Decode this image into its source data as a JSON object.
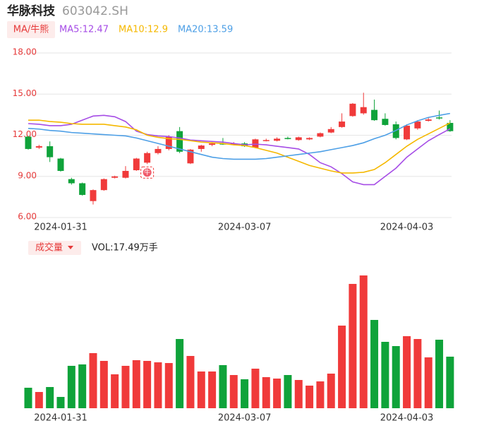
{
  "chart_data": {
    "type": "candlestick",
    "title": "华脉科技",
    "subtitle": "603042.SH",
    "indicator_label": "MA/牛熊",
    "volume_label": "成交量",
    "volume_value_label": "VOL:17.49万手",
    "annotation": "牛",
    "annotation_index": 11,
    "categories": [
      null,
      null,
      null,
      "2024-01-31",
      null,
      null,
      null,
      null,
      null,
      null,
      null,
      null,
      null,
      null,
      null,
      null,
      null,
      null,
      null,
      null,
      "2024-03-07",
      null,
      null,
      null,
      null,
      null,
      null,
      null,
      null,
      null,
      null,
      null,
      null,
      null,
      null,
      "2024-04-03",
      null,
      null,
      null,
      null
    ],
    "open": [
      11.9,
      11.1,
      11.2,
      10.3,
      8.8,
      8.5,
      7.2,
      8.0,
      8.9,
      8.9,
      9.45,
      10.0,
      10.7,
      11.0,
      12.3,
      9.95,
      11.0,
      11.3,
      11.4,
      11.35,
      11.4,
      11.1,
      11.6,
      11.6,
      11.8,
      11.65,
      11.7,
      11.9,
      12.2,
      12.6,
      13.4,
      13.6,
      13.85,
      13.2,
      12.8,
      11.7,
      12.5,
      13.05,
      13.3,
      12.9
    ],
    "high": [
      11.95,
      11.3,
      11.55,
      10.35,
      8.9,
      8.55,
      8.05,
      8.85,
      9.05,
      9.75,
      10.35,
      10.8,
      11.2,
      12.0,
      12.6,
      11.0,
      11.3,
      11.5,
      11.8,
      11.5,
      11.5,
      11.75,
      11.75,
      11.85,
      11.9,
      11.9,
      11.85,
      12.2,
      12.6,
      13.6,
      14.35,
      15.1,
      14.6,
      13.6,
      13.0,
      12.8,
      13.1,
      13.3,
      13.8,
      13.1
    ],
    "low": [
      10.95,
      11.0,
      10.05,
      9.35,
      8.4,
      7.6,
      6.95,
      7.95,
      8.85,
      8.85,
      9.4,
      9.9,
      10.6,
      10.9,
      10.7,
      9.9,
      10.8,
      11.2,
      11.3,
      11.3,
      11.15,
      11.05,
      11.55,
      11.55,
      11.7,
      11.6,
      11.65,
      11.85,
      12.15,
      12.55,
      13.35,
      13.5,
      13.05,
      12.7,
      11.7,
      11.65,
      12.4,
      13.0,
      13.15,
      12.25
    ],
    "close": [
      11.0,
      11.2,
      10.4,
      9.4,
      8.5,
      7.65,
      8.0,
      8.8,
      9.0,
      9.4,
      10.3,
      10.7,
      11.0,
      11.9,
      10.8,
      10.95,
      11.25,
      11.4,
      11.35,
      11.4,
      11.2,
      11.7,
      11.65,
      11.75,
      11.75,
      11.85,
      11.8,
      12.15,
      12.45,
      13.0,
      14.3,
      14.05,
      13.1,
      12.75,
      11.8,
      12.7,
      13.0,
      13.15,
      13.25,
      12.3
    ],
    "up_color": "#f03a3a",
    "down_color": "#0fa33a",
    "series": [
      {
        "name": "MA5:12.47",
        "color": "#a64de6",
        "values": [
          12.85,
          12.8,
          12.7,
          12.7,
          12.8,
          13.1,
          13.4,
          13.45,
          13.35,
          13.0,
          12.3,
          12.05,
          11.95,
          11.9,
          11.8,
          11.65,
          11.6,
          11.55,
          11.5,
          11.4,
          11.3,
          11.35,
          11.3,
          11.2,
          11.1,
          11.0,
          10.6,
          10.0,
          9.7,
          9.2,
          8.6,
          8.4,
          8.4,
          9.0,
          9.6,
          10.4,
          11.0,
          11.6,
          12.05,
          12.47
        ]
      },
      {
        "name": "MA10:12.9",
        "color": "#f5b800",
        "values": [
          13.1,
          13.1,
          13.0,
          12.95,
          12.85,
          12.8,
          12.8,
          12.8,
          12.7,
          12.6,
          12.4,
          12.0,
          11.85,
          11.75,
          11.7,
          11.6,
          11.5,
          11.45,
          11.4,
          11.3,
          11.25,
          11.1,
          10.9,
          10.7,
          10.4,
          10.1,
          9.8,
          9.6,
          9.4,
          9.25,
          9.25,
          9.3,
          9.5,
          10.0,
          10.6,
          11.2,
          11.7,
          12.1,
          12.5,
          12.9
        ]
      },
      {
        "name": "MA20:13.59",
        "color": "#4d9fe6",
        "values": [
          12.5,
          12.45,
          12.35,
          12.3,
          12.2,
          12.15,
          12.1,
          12.05,
          12.0,
          11.95,
          11.8,
          11.6,
          11.4,
          11.2,
          11.0,
          10.8,
          10.6,
          10.4,
          10.3,
          10.25,
          10.25,
          10.25,
          10.3,
          10.4,
          10.5,
          10.6,
          10.7,
          10.8,
          10.95,
          11.1,
          11.25,
          11.45,
          11.75,
          12.0,
          12.35,
          12.75,
          13.05,
          13.3,
          13.45,
          13.59
        ]
      }
    ],
    "volume": [
      6.95,
      5.51,
      7.19,
      3.83,
      14.38,
      14.86,
      18.69,
      16.05,
      11.5,
      14.38,
      16.29,
      16.05,
      15.57,
      15.33,
      23.48,
      17.73,
      12.46,
      12.46,
      14.62,
      11.26,
      9.82,
      13.42,
      10.54,
      10.06,
      11.26,
      9.58,
      7.67,
      9.1,
      11.74,
      28.03,
      42.17,
      45.04,
      29.95,
      22.52,
      21.08,
      24.44,
      23.48,
      17.25,
      23.24,
      17.49
    ],
    "ylim": [
      6,
      18
    ],
    "yticks": [
      {
        "value": 6,
        "label": "6.00"
      },
      {
        "value": 9,
        "label": "9.00"
      },
      {
        "value": 12,
        "label": "12.00"
      },
      {
        "value": 15,
        "label": "15.00"
      },
      {
        "value": 18,
        "label": "18.00"
      }
    ],
    "grid": true
  }
}
